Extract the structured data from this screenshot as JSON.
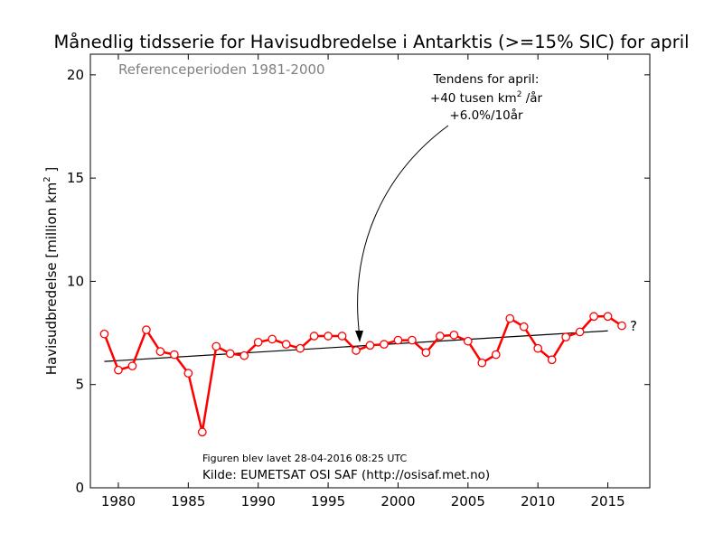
{
  "chart_data": {
    "type": "line",
    "title": "Månedlig tidsserie for Havisudbredelse i Antarktis (>=15% SIC) for april",
    "subtitle": "Referenceperioden 1981-2000",
    "xlabel": "",
    "ylabel_main": "Havisudbredelse [million km",
    "ylabel_sup": "2",
    "ylabel_end": " ]",
    "xlim": [
      1978,
      2018
    ],
    "ylim": [
      0,
      21
    ],
    "xticks": [
      1980,
      1985,
      1990,
      1995,
      2000,
      2005,
      2010,
      2015
    ],
    "yticks": [
      0,
      5,
      10,
      15,
      20
    ],
    "series": [
      {
        "x": [
          1979,
          1980,
          1981,
          1982,
          1983,
          1984,
          1985,
          1986,
          1987,
          1988,
          1989,
          1990,
          1991,
          1992,
          1993,
          1994,
          1995,
          1996,
          1997,
          1998,
          1999,
          2000,
          2001,
          2002,
          2003,
          2004,
          2005,
          2006,
          2007,
          2008,
          2009,
          2010,
          2011,
          2012,
          2013,
          2014,
          2015,
          2016
        ],
        "y": [
          7.45,
          5.7,
          5.9,
          7.65,
          6.6,
          6.45,
          5.55,
          2.7,
          6.85,
          6.5,
          6.4,
          7.05,
          7.2,
          6.95,
          6.75,
          7.35,
          7.35,
          7.35,
          6.65,
          6.9,
          6.95,
          7.15,
          7.15,
          6.55,
          7.35,
          7.4,
          7.1,
          6.05,
          6.45,
          8.2,
          7.8,
          6.75,
          6.2,
          7.3,
          7.55,
          8.3,
          8.3,
          7.85
        ],
        "color": "#ff0000"
      }
    ],
    "trend": {
      "x": [
        1979,
        2015
      ],
      "y": [
        6.12,
        7.6
      ],
      "color": "#000000"
    },
    "annotation": {
      "line1": "Tendens for april:",
      "line2_pre": "+40 tusen km",
      "line2_sup": "2",
      "line2_post": " /år",
      "line3": "+6.0%/10år",
      "arrow_target": {
        "x": 1997,
        "y": 6.8
      }
    },
    "unknown_marker": "?",
    "footer_date": "Figuren blev lavet 28-04-2016 08:25 UTC",
    "footer_source": "Kilde: EUMETSAT OSI SAF (http://osisaf.met.no)"
  }
}
